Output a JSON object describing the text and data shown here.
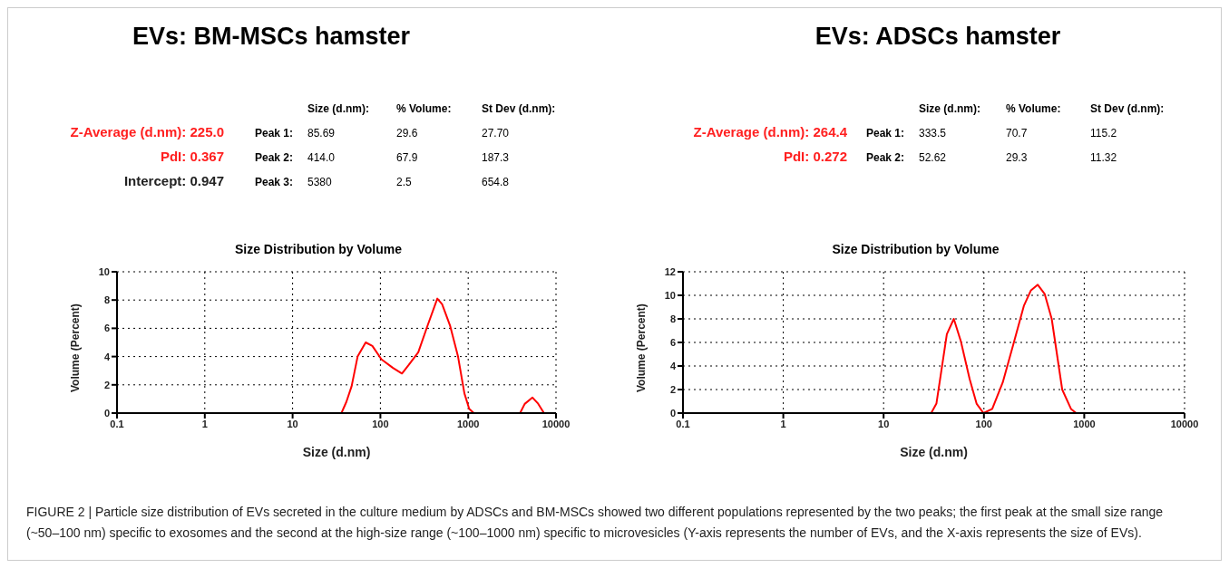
{
  "chart_data": [
    {
      "type": "line",
      "title": "EVs: BM-MSCs hamster",
      "subtitle": "Size Distribution by Volume",
      "xlabel": "Size (d.nm)",
      "ylabel": "Volume (Percent)",
      "annotations": [
        "Z-Average (d.nm): 225.0",
        "PdI: 0.367",
        "Intercept: 0.947",
        "Size (d.nm):",
        "% Volume:",
        "St Dev (d.nm):",
        "Peak 1:",
        "85.69",
        "29.6",
        "27.70",
        "Peak 2:",
        "414.0",
        "67.9",
        "187.3",
        "Peak 3:",
        "5380",
        "2.5",
        "654.8"
      ],
      "log": "x",
      "xlim": [
        0.1,
        10000
      ],
      "xticks": [
        0.1,
        1,
        10,
        100,
        1000,
        10000
      ],
      "ylim": [
        0,
        10
      ],
      "yticks": [
        0,
        2,
        4,
        6,
        8,
        10
      ],
      "grid": true,
      "legend": false,
      "marker": "none",
      "line_style": "solid",
      "series": [
        {
          "color": "#ff0000",
          "x": [
            0.4,
            36,
            41,
            47,
            55,
            68,
            81,
            103,
            139,
            176,
            210,
            270,
            345,
            445,
            505,
            621,
            766,
            905,
            1026,
            1160,
            3900,
            4400,
            5400,
            6200,
            7300
          ],
          "values": [
            0,
            0,
            0.8,
            1.9,
            4.0,
            5.0,
            4.75,
            3.8,
            3.2,
            2.8,
            3.4,
            4.3,
            6.2,
            8.1,
            7.7,
            6.2,
            4.0,
            1.4,
            0.3,
            0,
            0,
            0.65,
            1.1,
            0.7,
            0
          ]
        }
      ]
    },
    {
      "type": "line",
      "title": "EVs: ADSCs hamster",
      "subtitle": "Size Distribution by Volume",
      "xlabel": "Size (d.nm)",
      "ylabel": "Volume (Percent)",
      "annotations": [
        "Z-Average (d.nm): 264.4",
        "PdI: 0.272",
        "Size (d.nm):",
        "% Volume:",
        "St Dev (d.nm):",
        "Peak 1:",
        "333.5",
        "70.7",
        "115.2",
        "Peak 2:",
        "52.62",
        "29.3",
        "11.32",
        "FIGURE 2 | Particle size distribution of EVs secreted in the culture medium by ADSCs and BM-MSCs showed two different populations represented by the two peaks; the first peak at the small size range (~50–100 nm) specific to exosomes and the second at the high-size range (~100–1000 nm) specific to microvesicles (Y-axis represents the number of EVs, and the X-axis represents the size of EVs)."
      ],
      "log": "x",
      "xlim": [
        0.1,
        10000
      ],
      "xticks": [
        0.1,
        1,
        10,
        100,
        1000,
        10000
      ],
      "ylim": [
        0,
        12
      ],
      "yticks": [
        0,
        2,
        4,
        6,
        8,
        10,
        12
      ],
      "grid": true,
      "legend": false,
      "marker": "none",
      "line_style": "solid",
      "series": [
        {
          "color": "#ff0000",
          "x": [
            0.39,
            29.8,
            33.6,
            42.7,
            50.1,
            58.9,
            72,
            84.5,
            99,
            121,
            154,
            196,
            250,
            293,
            344,
            404,
            474,
            603,
            738,
            832,
            10000
          ],
          "values": [
            0,
            0,
            0.8,
            6.7,
            8.0,
            6.1,
            2.9,
            0.8,
            0,
            0.35,
            2.6,
            5.8,
            9.1,
            10.4,
            10.9,
            10.1,
            8.0,
            2.0,
            0.35,
            0,
            0
          ]
        }
      ]
    }
  ]
}
